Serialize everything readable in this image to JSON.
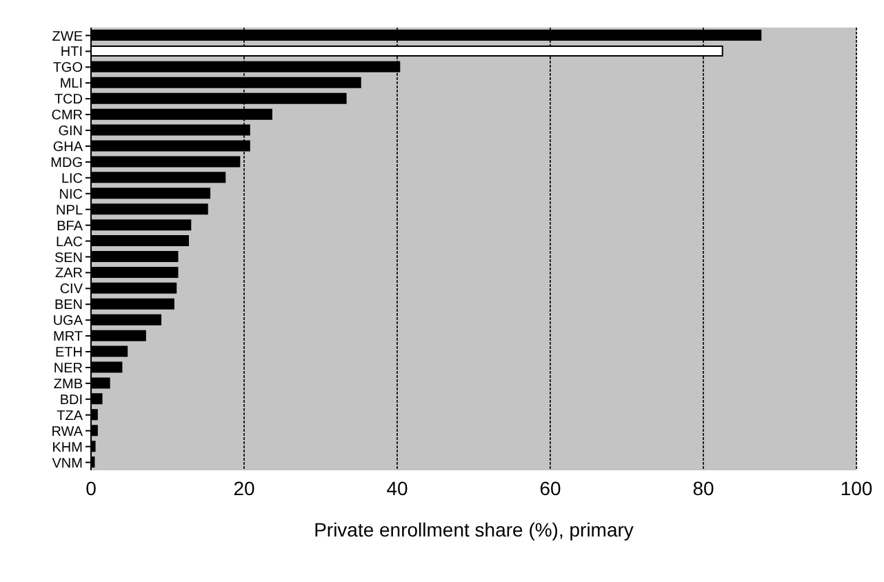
{
  "chart_data": {
    "type": "bar",
    "orientation": "horizontal",
    "xlabel": "Private enrollment share (%), primary",
    "categories": [
      "ZWE",
      "HTI",
      "TGO",
      "MLI",
      "TCD",
      "CMR",
      "GIN",
      "GHA",
      "MDG",
      "LIC",
      "NIC",
      "NPL",
      "BFA",
      "LAC",
      "SEN",
      "ZAR",
      "CIV",
      "BEN",
      "UGA",
      "MRT",
      "ETH",
      "NER",
      "ZMB",
      "BDI",
      "TZA",
      "RWA",
      "KHM",
      "VNM"
    ],
    "values": [
      87.5,
      82.5,
      40.3,
      35.2,
      33.3,
      23.6,
      20.7,
      20.7,
      19.4,
      17.5,
      15.5,
      15.2,
      13.0,
      12.7,
      11.3,
      11.3,
      11.1,
      10.8,
      9.1,
      7.1,
      4.7,
      4.0,
      2.4,
      1.4,
      0.8,
      0.8,
      0.5,
      0.4
    ],
    "colors": [
      "#000000",
      "#ffffff",
      "#000000",
      "#000000",
      "#000000",
      "#000000",
      "#000000",
      "#000000",
      "#000000",
      "#000000",
      "#000000",
      "#000000",
      "#000000",
      "#000000",
      "#000000",
      "#000000",
      "#000000",
      "#000000",
      "#000000",
      "#000000",
      "#000000",
      "#000000",
      "#000000",
      "#000000",
      "#000000",
      "#000000",
      "#000000",
      "#000000"
    ],
    "xlim": [
      0,
      100
    ],
    "xticks": [
      0,
      20,
      40,
      60,
      80,
      100
    ],
    "grid": "x"
  }
}
